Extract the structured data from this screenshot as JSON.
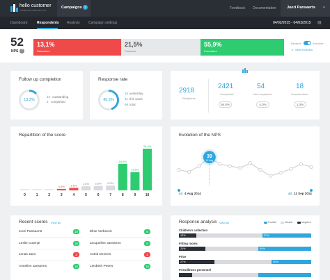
{
  "brand": {
    "name": "hello customer",
    "tagline": "CONNECTING • ENGAGE • ACT"
  },
  "header": {
    "campaigns_label": "Campaigns",
    "campaigns_count": "2",
    "feedback": "Feedback",
    "documentation": "Documentation",
    "user": "Joeri Pansaerts"
  },
  "nav": {
    "tabs": [
      "Dashboard",
      "Respondents",
      "Analysis",
      "Campaign settings"
    ],
    "active": "Respondents",
    "date_range": "04/02/2015 - 04/03/2015"
  },
  "nps": {
    "score": "52",
    "label": "NPS",
    "detractors_pct": "13,1%",
    "detractors_label": "Detractors",
    "passives_pct": "21,5%",
    "passives_label": "Passives",
    "promoters_pct": "55,9%",
    "promoters_label": "Promoters",
    "toggle_left": "Relative",
    "toggle_right": "Absolute",
    "view_evolution": "view evolution",
    "detractors_share": 0.131,
    "passives_share": 0.215,
    "promoters_share": 0.559
  },
  "followup": {
    "title": "Follow up completion",
    "percent": "13.2%",
    "value": 0.132,
    "outstanding": "12",
    "outstanding_label": "outstanding",
    "completed": "2",
    "completed_label": "completed"
  },
  "response_rate": {
    "title": "Response rate",
    "percent": "45.2%",
    "value": 0.452,
    "yesterday": "15",
    "yesterday_label": "yesterday",
    "this_week": "11",
    "this_week_label": "this week",
    "total": "68",
    "total_label": "total"
  },
  "counts": {
    "recipients": "2918",
    "recipients_label": "Recipients",
    "completed": "2421",
    "completed_label": "Completed",
    "completed_pct": "94.0%",
    "not_completed": "54",
    "not_completed_label": "Not completed",
    "not_completed_pct": "4.0%",
    "unsubscribed": "18",
    "unsubscribed_label": "Unsubscribed",
    "unsubscribed_pct": "1.0%"
  },
  "repartition": {
    "title": "Repartition of the score"
  },
  "chart_data": [
    {
      "type": "bar",
      "title": "Repartition of the score",
      "categories": [
        "0",
        "1",
        "2",
        "3",
        "4",
        "5",
        "6",
        "7",
        "8",
        "9",
        "10"
      ],
      "values": [
        0,
        0,
        0,
        0.5,
        1.6,
        2.6,
        2.8,
        3.0,
        16.8,
        11.6,
        26.4
      ],
      "data_labels": [
        "",
        "",
        "",
        "0.5%",
        "1.6%",
        "2.6%",
        "2.8%",
        "3.0%",
        "16.8%",
        "11.6%",
        "26.4%"
      ],
      "colors": [
        "#e8e8e8",
        "#e8e8e8",
        "#e8e8e8",
        "#f0494a",
        "#f0494a",
        "#d8dadd",
        "#d8dadd",
        "#d8dadd",
        "#2ecc71",
        "#2ecc71",
        "#2ecc71"
      ]
    },
    {
      "type": "line",
      "title": "Evolution of the NPS",
      "start_label": "4 Aug 2014",
      "end_label": "12 Sep 2014",
      "callout_value": "39",
      "callout_date": "11 Aug",
      "values": [
        26,
        24,
        30,
        39,
        32,
        30,
        28,
        33,
        26,
        20,
        23,
        27,
        32,
        29
      ]
    }
  ],
  "evolution": {
    "title": "Evolution of the NPS",
    "start_week": "44",
    "start_date": "4 Aug 2014",
    "end_week": "44",
    "end_date": "12 Sep 2014",
    "callout_value": "39",
    "callout_date": "11 Aug"
  },
  "recent": {
    "title": "Recent scores",
    "view_all": "View all",
    "items": [
      {
        "name": "Joeri Pansaerts",
        "score": "10",
        "color": "#2ecc71"
      },
      {
        "name": "Elise Verbeeck",
        "score": "6",
        "color": "#2ecc71"
      },
      {
        "name": "Leslie Cotenje",
        "score": "10",
        "color": "#2ecc71"
      },
      {
        "name": "Jacqueline Janssens",
        "score": "8",
        "color": "#2ecc71"
      },
      {
        "name": "Jonas Jans",
        "score": "3",
        "color": "#f0494a"
      },
      {
        "name": "Astrid Deniers",
        "score": "2",
        "color": "#f0494a"
      },
      {
        "name": "Annelies Janssens",
        "score": "10",
        "color": "#2ecc71"
      },
      {
        "name": "Liesbeth Peters",
        "score": "10",
        "color": "#2ecc71"
      }
    ]
  },
  "response_analysis": {
    "title": "Response analysis",
    "view_all": "View all",
    "legend": [
      "Positive",
      "Neutral",
      "Negative"
    ],
    "legend_colors": [
      "#2fa6de",
      "#d8dadd",
      "#2a2e35"
    ],
    "rows": [
      {
        "label": "Children's collection",
        "negative": 0.13,
        "neutral": 0.5,
        "positive": 0.37,
        "negative_label": "13%",
        "neutral_label": "",
        "positive_label": "37%"
      },
      {
        "label": "Fitting rooms",
        "negative": 0.2,
        "neutral": 0.4,
        "positive": 0.4,
        "negative_label": "20%",
        "neutral_label": "",
        "positive_label": "40%"
      },
      {
        "label": "Price",
        "negative": 0.27,
        "neutral": 0.43,
        "positive": 0.3,
        "negative_label": "27%",
        "neutral_label": "",
        "positive_label": "30%"
      },
      {
        "label": "Friendliness personnel",
        "negative": 0.1,
        "neutral": 0.5,
        "positive": 0.4,
        "negative_label": "",
        "neutral_label": "",
        "positive_label": ""
      }
    ]
  }
}
